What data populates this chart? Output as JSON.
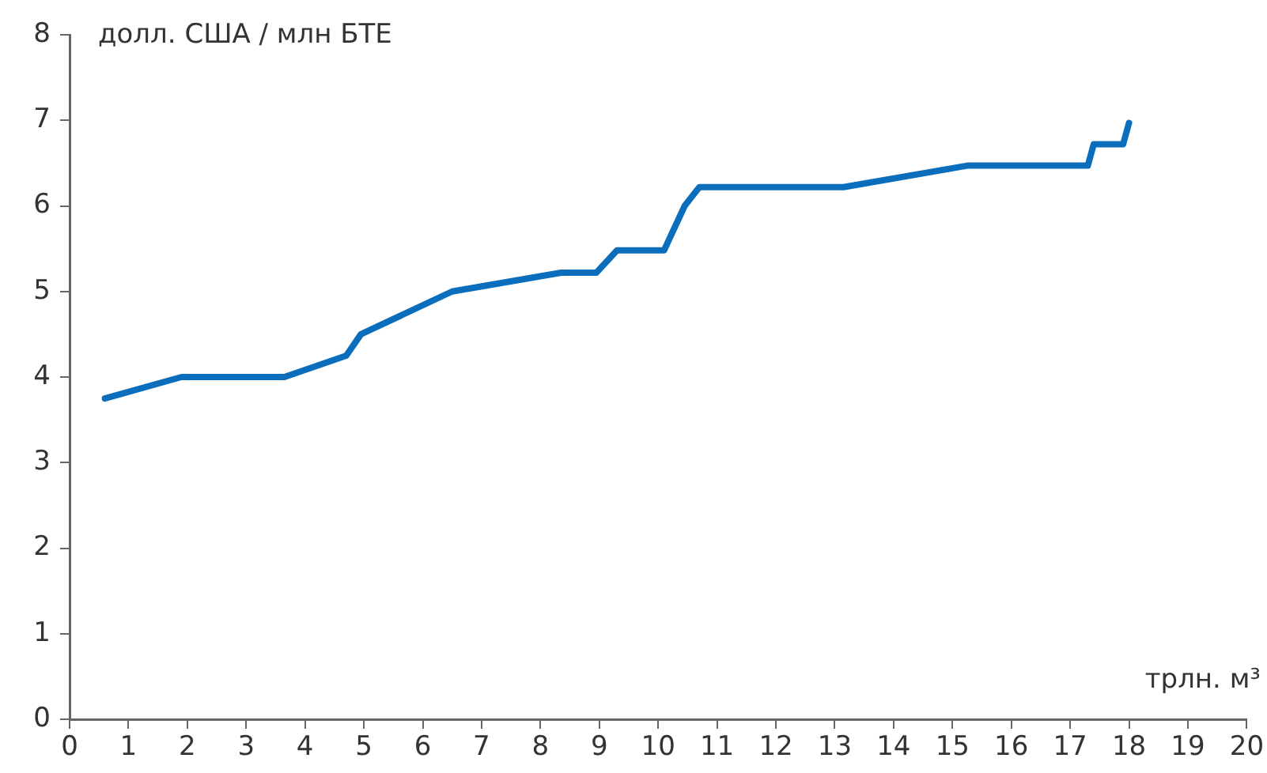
{
  "chart_data": {
    "type": "line",
    "xlabel": "трлн. м³",
    "ylabel": "долл. США / млн БТЕ",
    "series": [
      {
        "color": "#0a6ebd",
        "x": [
          0.6,
          1.9,
          3.65,
          4.7,
          4.95,
          6.5,
          8.35,
          8.95,
          9.3,
          10.1,
          10.45,
          10.7,
          13.15,
          15.25,
          17.3,
          17.4,
          17.9,
          18.0
        ],
        "values": [
          3.75,
          4.0,
          4.0,
          4.25,
          4.5,
          5.0,
          5.22,
          5.22,
          5.48,
          5.48,
          6.0,
          6.22,
          6.22,
          6.47,
          6.47,
          6.72,
          6.72,
          6.97
        ]
      }
    ],
    "xlim": [
      0,
      20
    ],
    "xticks": [
      0,
      1,
      2,
      3,
      4,
      5,
      6,
      7,
      8,
      9,
      10,
      11,
      12,
      13,
      14,
      15,
      16,
      17,
      18,
      19,
      20
    ],
    "ylim": [
      0,
      8
    ],
    "yticks": [
      0,
      1,
      2,
      3,
      4,
      5,
      6,
      7,
      8
    ],
    "grid": false,
    "legend": false,
    "marker": "none",
    "line_style": "solid"
  }
}
